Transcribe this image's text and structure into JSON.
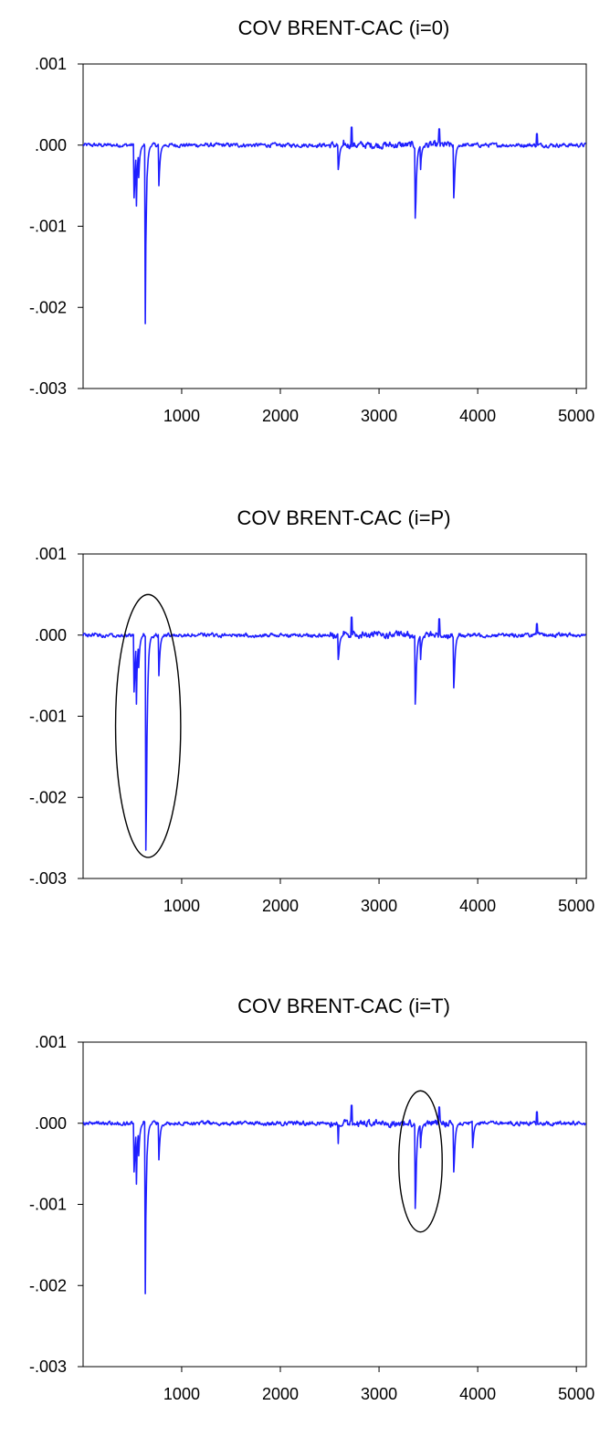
{
  "colors": {
    "series": "#1f1fff",
    "axes": "#000000",
    "background": "#ffffff"
  },
  "chart_data": [
    {
      "type": "line",
      "title": "COV BRENT-CAC (i=0)",
      "xlabel": "",
      "ylabel": "",
      "xlim": [
        1,
        5100
      ],
      "ylim": [
        -0.003,
        0.001
      ],
      "xticks": [
        1000,
        2000,
        3000,
        4000,
        5000
      ],
      "xtick_labels": [
        "1000",
        "2000",
        "3000",
        "4000",
        "5000"
      ],
      "yticks": [
        0.001,
        0.0,
        -0.001,
        -0.002,
        -0.003
      ],
      "ytick_labels": [
        ".001",
        ".000",
        "-.001",
        "-.002",
        "-.003"
      ],
      "grid": false,
      "legend": "none",
      "baseline": 0.0,
      "spikes": [
        {
          "x": 520,
          "y": -0.00065
        },
        {
          "x": 540,
          "y": -0.00075
        },
        {
          "x": 565,
          "y": -0.0004
        },
        {
          "x": 630,
          "y": -0.0022
        },
        {
          "x": 650,
          "y": -0.0004
        },
        {
          "x": 770,
          "y": -0.0005
        },
        {
          "x": 2590,
          "y": -0.0003
        },
        {
          "x": 3370,
          "y": -0.0009
        },
        {
          "x": 3420,
          "y": -0.0003
        },
        {
          "x": 3760,
          "y": -0.00065
        },
        {
          "x": 5100,
          "y": -0.0001
        }
      ],
      "highlights": []
    },
    {
      "type": "line",
      "title": "COV BRENT-CAC (i=P)",
      "xlabel": "",
      "ylabel": "",
      "xlim": [
        1,
        5100
      ],
      "ylim": [
        -0.003,
        0.001
      ],
      "xticks": [
        1000,
        2000,
        3000,
        4000,
        5000
      ],
      "xtick_labels": [
        "1000",
        "2000",
        "3000",
        "4000",
        "5000"
      ],
      "yticks": [
        0.001,
        0.0,
        -0.001,
        -0.002,
        -0.003
      ],
      "ytick_labels": [
        ".001",
        ".000",
        "-.001",
        "-.002",
        "-.003"
      ],
      "grid": false,
      "legend": "none",
      "baseline": 0.0,
      "spikes": [
        {
          "x": 520,
          "y": -0.0007
        },
        {
          "x": 540,
          "y": -0.00085
        },
        {
          "x": 565,
          "y": -0.0004
        },
        {
          "x": 640,
          "y": -0.00265
        },
        {
          "x": 660,
          "y": -0.0005
        },
        {
          "x": 770,
          "y": -0.0005
        },
        {
          "x": 2590,
          "y": -0.0003
        },
        {
          "x": 3370,
          "y": -0.00085
        },
        {
          "x": 3420,
          "y": -0.0003
        },
        {
          "x": 3760,
          "y": -0.00065
        },
        {
          "x": 5100,
          "y": -0.0001
        }
      ],
      "highlights": [
        {
          "x_center": 660,
          "y_center": -0.00112,
          "x_radius": 330,
          "y_radius": 0.00162
        }
      ]
    },
    {
      "type": "line",
      "title": "COV BRENT-CAC (i=T)",
      "xlabel": "",
      "ylabel": "",
      "xlim": [
        1,
        5100
      ],
      "ylim": [
        -0.003,
        0.001
      ],
      "xticks": [
        1000,
        2000,
        3000,
        4000,
        5000
      ],
      "xtick_labels": [
        "1000",
        "2000",
        "3000",
        "4000",
        "5000"
      ],
      "yticks": [
        0.001,
        0.0,
        -0.001,
        -0.002,
        -0.003
      ],
      "ytick_labels": [
        ".001",
        ".000",
        "-.001",
        "-.002",
        "-.003"
      ],
      "grid": false,
      "legend": "none",
      "baseline": 0.0,
      "spikes": [
        {
          "x": 520,
          "y": -0.0006
        },
        {
          "x": 540,
          "y": -0.00075
        },
        {
          "x": 565,
          "y": -0.0004
        },
        {
          "x": 630,
          "y": -0.0021
        },
        {
          "x": 650,
          "y": -0.0004
        },
        {
          "x": 770,
          "y": -0.00045
        },
        {
          "x": 2590,
          "y": -0.00025
        },
        {
          "x": 3370,
          "y": -0.00105
        },
        {
          "x": 3420,
          "y": -0.0003
        },
        {
          "x": 3760,
          "y": -0.0006
        },
        {
          "x": 3950,
          "y": -0.0003
        },
        {
          "x": 5100,
          "y": -0.0001
        }
      ],
      "highlights": [
        {
          "x_center": 3420,
          "y_center": -0.00047,
          "x_radius": 220,
          "y_radius": 0.00087
        }
      ]
    }
  ]
}
